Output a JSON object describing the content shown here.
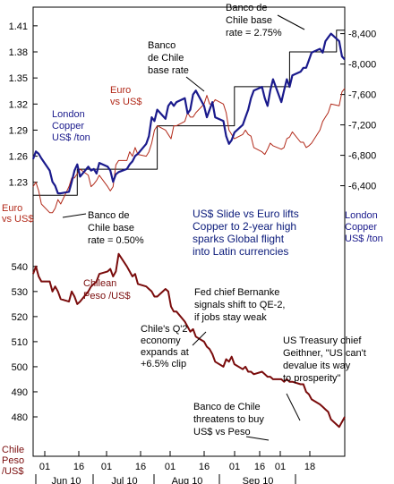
{
  "colors": {
    "copper": "#1a1a8c",
    "euro": "#b22a1a",
    "peso": "#7a0c0c",
    "boj": "#000000",
    "title": "#0a1a7a"
  },
  "chart_data": [
    {
      "type": "line",
      "title": "US$ Slide vs Euro lifts Copper to 2-year high sparks Global flight into Latin currencies",
      "title_lines": [
        "US$ Slide vs Euro lifts",
        "Copper to 2-year high",
        "sparks Global flight",
        "into Latin currencies"
      ],
      "x_ticks": [
        "01",
        "16",
        "01",
        "16",
        "01",
        "16",
        "01",
        "16",
        "01",
        "18"
      ],
      "x_months": [
        "Jun 10",
        "Jul 10",
        "Aug 10",
        "Sep 10"
      ],
      "left_axis": {
        "ticks": [
          "1.41",
          "1.38",
          "1.35",
          "1.32",
          "1.29",
          "1.26",
          "1.23"
        ],
        "ylim": [
          1.205,
          1.415
        ]
      },
      "right_axis": {
        "ticks": [
          "8,400",
          "8,000",
          "7,600",
          "7,200",
          "6,800",
          "6,400"
        ],
        "ylim": [
          6160,
          8560
        ]
      },
      "series": [
        {
          "name": "London Copper US$ /ton",
          "label_lines": [
            "London",
            "Copper",
            "US$ /ton"
          ],
          "axis_label_lines": [
            "London",
            "Copper",
            "US$ /ton"
          ],
          "axis": "right",
          "x": [
            "06-01",
            "06-02",
            "06-03",
            "06-04",
            "06-07",
            "06-08",
            "06-09",
            "06-10",
            "06-11",
            "06-14",
            "06-15",
            "06-16",
            "06-17",
            "06-18",
            "06-21",
            "06-22",
            "06-23",
            "06-24",
            "06-25",
            "06-28",
            "06-29",
            "06-30",
            "07-01",
            "07-02",
            "07-05",
            "07-06",
            "07-07",
            "07-08",
            "07-09",
            "07-12",
            "07-13",
            "07-14",
            "07-15",
            "07-16",
            "07-19",
            "07-20",
            "07-21",
            "07-22",
            "07-23",
            "07-26",
            "07-27",
            "07-28",
            "07-29",
            "07-30",
            "08-02",
            "08-03",
            "08-04",
            "08-05",
            "08-06",
            "08-09",
            "08-10",
            "08-11",
            "08-12",
            "08-13",
            "08-16",
            "08-17",
            "08-18",
            "08-19",
            "08-20",
            "08-23",
            "08-24",
            "08-25",
            "08-26",
            "08-27",
            "08-30",
            "08-31",
            "09-01",
            "09-02",
            "09-03",
            "09-06",
            "09-07",
            "09-08",
            "09-09",
            "09-10",
            "09-13",
            "09-14",
            "09-15",
            "09-16",
            "09-17",
            "09-20",
            "09-21",
            "09-22"
          ],
          "values": [
            6750,
            6850,
            6820,
            6760,
            6600,
            6450,
            6400,
            6300,
            6300,
            6320,
            6450,
            6600,
            6680,
            6520,
            6650,
            6600,
            6620,
            6560,
            6700,
            6650,
            6600,
            6450,
            6550,
            6580,
            6620,
            6680,
            6720,
            6790,
            6820,
            6950,
            7050,
            7300,
            7250,
            7400,
            7280,
            7450,
            7500,
            7450,
            7500,
            7550,
            7350,
            7400,
            7600,
            7650,
            7450,
            7300,
            7400,
            7500,
            7300,
            7250,
            7050,
            6950,
            7000,
            7100,
            7200,
            7300,
            7400,
            7550,
            7650,
            7700,
            7550,
            7450,
            7650,
            7800,
            7500,
            7650,
            7800,
            7700,
            7850,
            7900,
            7950,
            7950,
            8050,
            8150,
            8200,
            8150,
            8300,
            8350,
            8400,
            8300,
            8100,
            8060
          ]
        },
        {
          "name": "Euro vs US$",
          "label_lines": [
            "Euro",
            "vs US$"
          ],
          "axis_label_lines": [
            "Euro",
            "vs US$"
          ],
          "axis": "left",
          "x": [
            "06-01",
            "06-02",
            "06-03",
            "06-04",
            "06-07",
            "06-08",
            "06-09",
            "06-10",
            "06-11",
            "06-14",
            "06-15",
            "06-16",
            "06-17",
            "06-18",
            "06-21",
            "06-22",
            "06-23",
            "06-24",
            "06-25",
            "06-28",
            "06-29",
            "06-30",
            "07-01",
            "07-02",
            "07-05",
            "07-06",
            "07-07",
            "07-08",
            "07-09",
            "07-12",
            "07-13",
            "07-14",
            "07-15",
            "07-16",
            "07-19",
            "07-20",
            "07-21",
            "07-22",
            "07-23",
            "07-26",
            "07-27",
            "07-28",
            "07-29",
            "07-30",
            "08-02",
            "08-03",
            "08-04",
            "08-05",
            "08-06",
            "08-09",
            "08-10",
            "08-11",
            "08-12",
            "08-13",
            "08-16",
            "08-17",
            "08-18",
            "08-19",
            "08-20",
            "08-23",
            "08-24",
            "08-25",
            "08-26",
            "08-27",
            "08-30",
            "08-31",
            "09-01",
            "09-02",
            "09-03",
            "09-06",
            "09-07",
            "09-08",
            "09-09",
            "09-10",
            "09-13",
            "09-14",
            "09-15",
            "09-16",
            "09-17",
            "09-20",
            "09-21",
            "09-22"
          ],
          "values": [
            1.225,
            1.23,
            1.22,
            1.205,
            1.195,
            1.195,
            1.2,
            1.21,
            1.205,
            1.225,
            1.235,
            1.235,
            1.24,
            1.245,
            1.238,
            1.225,
            1.228,
            1.232,
            1.238,
            1.225,
            1.22,
            1.225,
            1.25,
            1.255,
            1.255,
            1.265,
            1.26,
            1.27,
            1.262,
            1.26,
            1.265,
            1.275,
            1.29,
            1.295,
            1.29,
            1.285,
            1.28,
            1.295,
            1.295,
            1.3,
            1.31,
            1.305,
            1.305,
            1.31,
            1.32,
            1.33,
            1.32,
            1.32,
            1.325,
            1.32,
            1.31,
            1.29,
            1.285,
            1.28,
            1.285,
            1.29,
            1.285,
            1.283,
            1.27,
            1.265,
            1.262,
            1.268,
            1.275,
            1.272,
            1.268,
            1.27,
            1.28,
            1.282,
            1.288,
            1.276,
            1.276,
            1.27,
            1.272,
            1.275,
            1.29,
            1.3,
            1.305,
            1.31,
            1.32,
            1.318,
            1.334,
            1.338
          ]
        },
        {
          "name": "Banco de Chile base rate",
          "axis": "left",
          "step": true,
          "x": [
            "06-01",
            "06-17",
            "06-17",
            "07-16",
            "07-16",
            "08-13",
            "08-13",
            "09-02",
            "09-02",
            "09-19",
            "09-19",
            "09-22"
          ],
          "values": [
            1.215,
            1.215,
            1.245,
            1.245,
            1.295,
            1.295,
            1.34,
            1.34,
            1.38,
            1.38,
            1.405,
            1.405
          ]
        },
        {
          "name": "Chilean Peso /US$",
          "label_lines": [
            "Chilean",
            "Peso /US$"
          ],
          "axis_label_lines": [
            "Chile",
            "Peso",
            "/US$"
          ],
          "axis": "peso",
          "ylim": [
            475,
            546
          ],
          "ticks": [
            "540",
            "530",
            "520",
            "510",
            "500",
            "490",
            "480"
          ],
          "x": [
            "06-01",
            "06-02",
            "06-03",
            "06-04",
            "06-07",
            "06-08",
            "06-09",
            "06-10",
            "06-11",
            "06-14",
            "06-15",
            "06-16",
            "06-17",
            "06-18",
            "06-21",
            "06-22",
            "06-23",
            "06-24",
            "06-25",
            "06-28",
            "06-29",
            "06-30",
            "07-01",
            "07-02",
            "07-05",
            "07-06",
            "07-07",
            "07-08",
            "07-09",
            "07-12",
            "07-13",
            "07-14",
            "07-15",
            "07-16",
            "07-19",
            "07-20",
            "07-21",
            "07-22",
            "07-23",
            "07-26",
            "07-27",
            "07-28",
            "07-29",
            "07-30",
            "08-02",
            "08-03",
            "08-04",
            "08-05",
            "08-06",
            "08-09",
            "08-10",
            "08-11",
            "08-12",
            "08-13",
            "08-16",
            "08-17",
            "08-18",
            "08-19",
            "08-20",
            "08-23",
            "08-24",
            "08-25",
            "08-26",
            "08-27",
            "08-30",
            "08-31",
            "09-01",
            "09-02",
            "09-03",
            "09-06",
            "09-07",
            "09-08",
            "09-09",
            "09-10",
            "09-13",
            "09-14",
            "09-15",
            "09-16",
            "09-17",
            "09-20",
            "09-21",
            "09-22"
          ],
          "values": [
            537,
            540,
            536,
            534,
            534,
            530,
            532,
            530,
            527,
            526,
            530,
            528,
            525,
            526,
            530,
            532,
            533,
            534,
            537,
            538,
            539,
            536,
            538,
            545,
            540,
            538,
            536,
            537,
            533,
            532,
            531,
            530,
            528,
            528,
            531,
            530,
            524,
            522,
            522,
            518,
            516,
            514,
            515,
            512,
            510,
            508,
            507,
            505,
            502,
            500,
            503,
            502,
            504,
            501,
            499,
            500,
            498,
            498,
            497,
            498,
            497,
            496,
            496,
            495,
            495,
            494,
            495,
            494,
            494,
            493,
            493,
            490,
            489,
            487,
            485,
            484,
            483,
            482,
            479,
            476,
            478,
            480
          ]
        }
      ],
      "annotations": [
        {
          "lines": [
            "Banco de",
            "Chile base",
            "rate = 2.75%"
          ]
        },
        {
          "lines": [
            "Banco",
            "de Chile",
            "base rate"
          ]
        },
        {
          "lines": [
            "Banco de",
            "Chile base",
            "rate = 0.50%"
          ]
        },
        {
          "lines": [
            "Fed chief Bernanke",
            "signals shift to QE-2,",
            "if jobs stay weak"
          ]
        },
        {
          "lines": [
            "Chile's Q'2",
            "economy",
            "expands at",
            "+6.5% clip"
          ]
        },
        {
          "lines": [
            "US Treasury chief",
            "Geithner, \"US can't",
            "devalue its way",
            "to prosperity\""
          ]
        },
        {
          "lines": [
            "Banco de Chile",
            "threatens to buy",
            "US$ vs Peso"
          ]
        }
      ],
      "grid": false,
      "legend": "none"
    }
  ]
}
